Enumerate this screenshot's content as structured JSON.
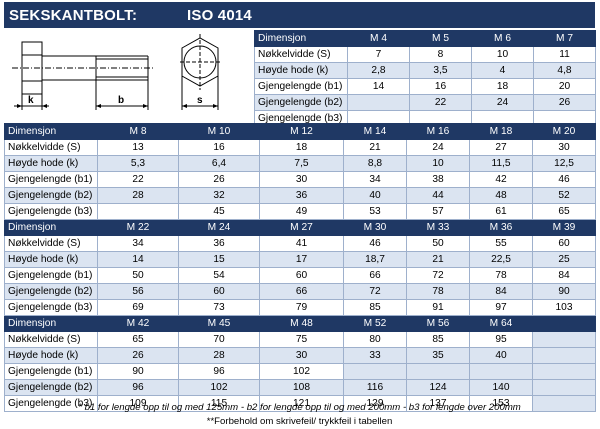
{
  "title": {
    "left": "SEKSKANTBOLT:",
    "right": "ISO 4014"
  },
  "drawing": {
    "labels": [
      "k",
      "b",
      "s"
    ]
  },
  "top_table": {
    "header": [
      "Dimensjon",
      "M 4",
      "M 5",
      "M 6",
      "M 7"
    ],
    "rows": [
      [
        "Nøkkelvidde (S)",
        "7",
        "8",
        "10",
        "11"
      ],
      [
        "Høyde hode (k)",
        "2,8",
        "3,5",
        "4",
        "4,8"
      ],
      [
        "Gjengelengde (b1)",
        "14",
        "16",
        "18",
        "20"
      ],
      [
        "Gjengelengde (b2)",
        "",
        "22",
        "24",
        "26"
      ],
      [
        "Gjengelengde (b3)",
        "",
        "",
        "",
        ""
      ]
    ]
  },
  "blocks": [
    {
      "header": [
        "Dimensjon",
        "M 8",
        "M 10",
        "M 12",
        "M 14",
        "M 16",
        "M 18",
        "M 20"
      ],
      "rows": [
        [
          "Nøkkelvidde (S)",
          "13",
          "16",
          "18",
          "21",
          "24",
          "27",
          "30"
        ],
        [
          "Høyde hode (k)",
          "5,3",
          "6,4",
          "7,5",
          "8,8",
          "10",
          "11,5",
          "12,5"
        ],
        [
          "Gjengelengde (b1)",
          "22",
          "26",
          "30",
          "34",
          "38",
          "42",
          "46"
        ],
        [
          "Gjengelengde (b2)",
          "28",
          "32",
          "36",
          "40",
          "44",
          "48",
          "52"
        ],
        [
          "Gjengelengde (b3)",
          "",
          "45",
          "49",
          "53",
          "57",
          "61",
          "65"
        ]
      ]
    },
    {
      "header": [
        "Dimensjon",
        "M 22",
        "M 24",
        "M 27",
        "M 30",
        "M 33",
        "M 36",
        "M 39"
      ],
      "rows": [
        [
          "Nøkkelvidde (S)",
          "34",
          "36",
          "41",
          "46",
          "50",
          "55",
          "60"
        ],
        [
          "Høyde hode (k)",
          "14",
          "15",
          "17",
          "18,7",
          "21",
          "22,5",
          "25"
        ],
        [
          "Gjengelengde (b1)",
          "50",
          "54",
          "60",
          "66",
          "72",
          "78",
          "84"
        ],
        [
          "Gjengelengde (b2)",
          "56",
          "60",
          "66",
          "72",
          "78",
          "84",
          "90"
        ],
        [
          "Gjengelengde (b3)",
          "69",
          "73",
          "79",
          "85",
          "91",
          "97",
          "103"
        ]
      ]
    },
    {
      "header": [
        "Dimensjon",
        "M 42",
        "M 45",
        "M 48",
        "M 52",
        "M 56",
        "M 64",
        ""
      ],
      "rows": [
        [
          "Nøkkelvidde (S)",
          "65",
          "70",
          "75",
          "80",
          "85",
          "95",
          ""
        ],
        [
          "Høyde hode (k)",
          "26",
          "28",
          "30",
          "33",
          "35",
          "40",
          ""
        ],
        [
          "Gjengelengde (b1)",
          "90",
          "96",
          "102",
          "",
          "",
          "",
          ""
        ],
        [
          "Gjengelengde (b2)",
          "96",
          "102",
          "108",
          "116",
          "124",
          "140",
          ""
        ],
        [
          "Gjengelengde (b3)",
          "109",
          "115",
          "121",
          "129",
          "137",
          "153",
          ""
        ]
      ]
    }
  ],
  "notes": {
    "footnote": "* b1 for lengde opp til og med 125mm - b2 for lengde opp til og med 200mm - b3 for lengde over 200mm",
    "disclaimer": "**Forbehold om skrivefeil/ trykkfeil i tabellen"
  }
}
